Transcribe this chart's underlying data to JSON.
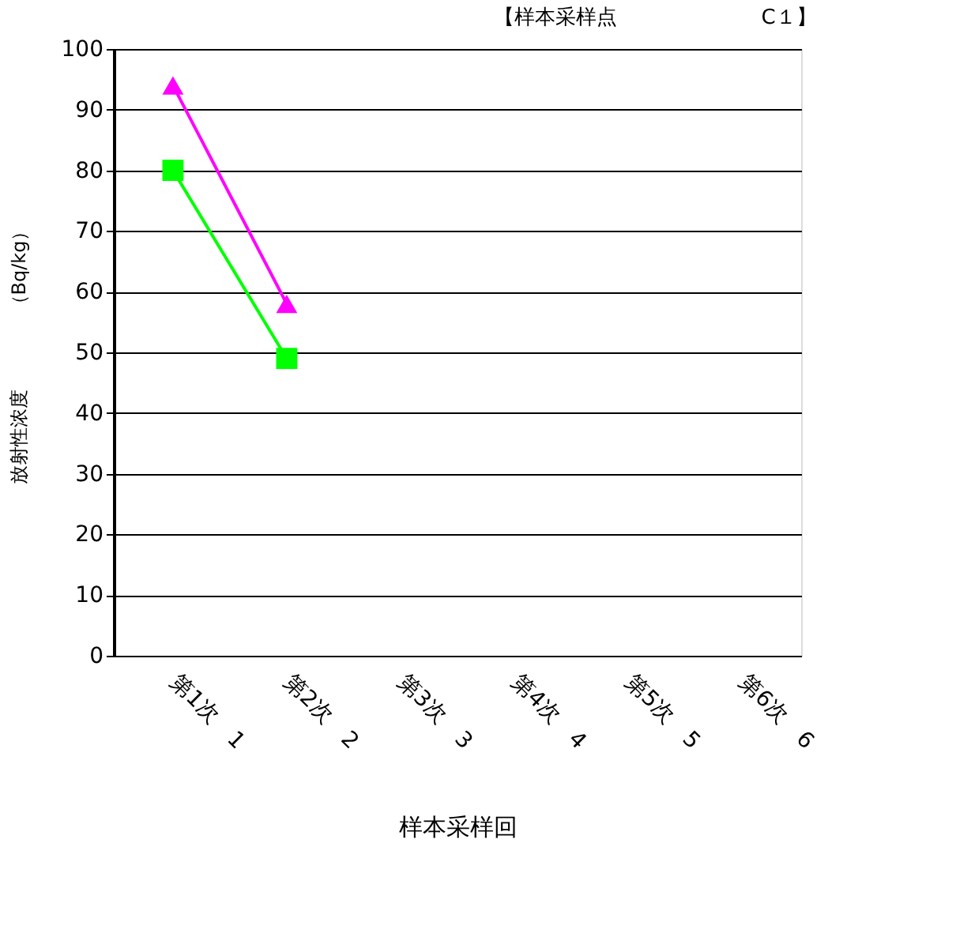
{
  "chart_data": {
    "type": "line",
    "title": "【样本采样点　　　　　　　C１】",
    "xlabel": "样本采样回",
    "ylabel": "放射性浓度　　　　（Bq/kg）",
    "categories": [
      "第1次　1",
      "第2次　2",
      "第3次　3",
      "第4次　4",
      "第5次　5",
      "第6次　6"
    ],
    "series": [
      {
        "color": "#ff00ff",
        "marker": "triangle",
        "values": [
          94,
          58,
          null,
          null,
          null,
          null
        ]
      },
      {
        "color": "#00ff00",
        "marker": "square",
        "values": [
          80,
          49,
          null,
          null,
          null,
          null
        ]
      }
    ],
    "ylim": [
      0,
      100
    ],
    "yticks": [
      0,
      10,
      20,
      30,
      40,
      50,
      60,
      70,
      80,
      90,
      100
    ],
    "grid": "y",
    "line_style": "solid"
  }
}
